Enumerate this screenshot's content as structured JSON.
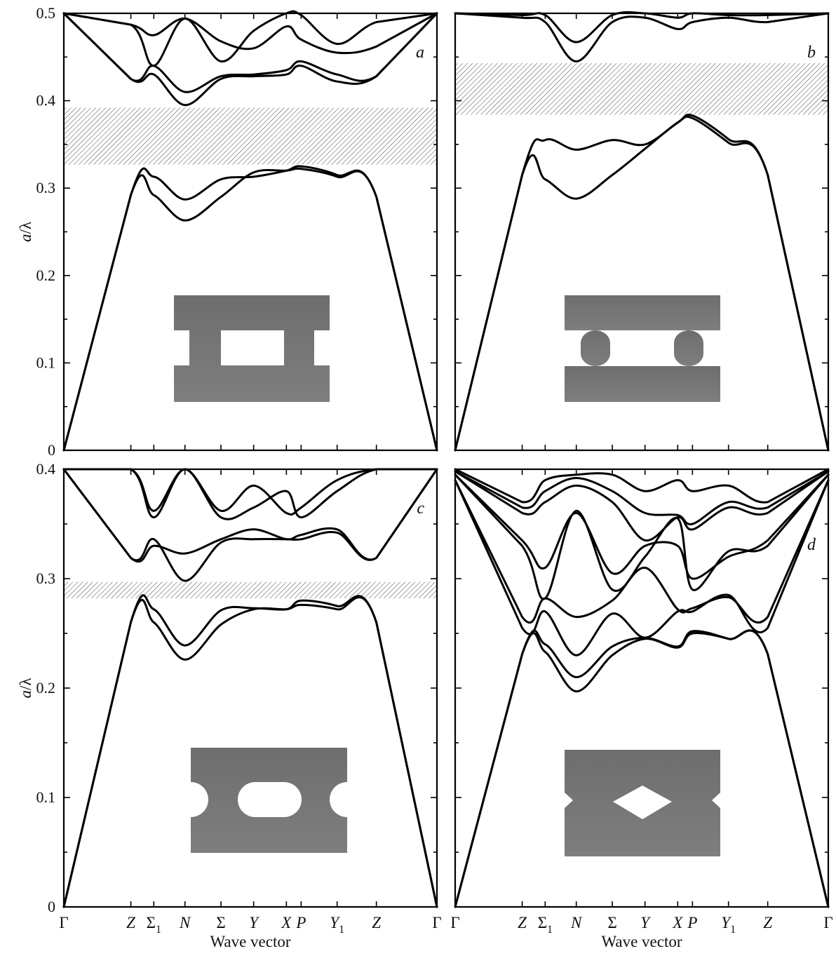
{
  "chart_data": [
    {
      "type": "line",
      "panel": "a",
      "xlabel": "",
      "ylabel": "a/λ",
      "ylim": [
        0,
        0.5
      ],
      "yticks": [
        "0",
        "0.1",
        "0.2",
        "0.3",
        "0.4",
        "0.5"
      ],
      "kpoints": [
        "Γ",
        "Z",
        "Σ1",
        "N",
        "Σ",
        "Y",
        "X",
        "P",
        "Y1",
        "Z",
        "Γ"
      ],
      "band_gap": [
        0.327,
        0.392
      ],
      "series": [
        {
          "y": [
            0,
            0.292,
            0.292,
            0.263,
            0.29,
            0.318,
            0.32,
            0.322,
            0.313,
            0.29,
            0
          ]
        },
        {
          "y": [
            0,
            0.292,
            0.313,
            0.287,
            0.31,
            0.313,
            0.32,
            0.325,
            0.315,
            0.29,
            0
          ]
        },
        {
          "y": [
            0.5,
            0.425,
            0.43,
            0.395,
            0.425,
            0.428,
            0.43,
            0.44,
            0.422,
            0.428,
            0.5
          ]
        },
        {
          "y": [
            0.5,
            0.425,
            0.44,
            0.41,
            0.428,
            0.43,
            0.435,
            0.445,
            0.43,
            0.428,
            0.5
          ]
        },
        {
          "y": [
            0.5,
            0.487,
            0.475,
            0.494,
            0.468,
            0.46,
            0.485,
            0.47,
            0.455,
            0.462,
            0.5
          ]
        },
        {
          "y": [
            0.5,
            0.487,
            0.44,
            0.494,
            0.445,
            0.48,
            0.5,
            0.498,
            0.465,
            0.49,
            0.5
          ]
        }
      ]
    },
    {
      "type": "line",
      "panel": "b",
      "xlabel": "",
      "ylabel": "",
      "ylim": [
        0,
        0.5
      ],
      "yticks": [
        "0",
        "0.1",
        "0.2",
        "0.3",
        "0.4",
        "0.5"
      ],
      "kpoints": [
        "Γ",
        "Z",
        "Σ1",
        "N",
        "Σ",
        "Y",
        "X",
        "P",
        "Y1",
        "Z",
        "Γ"
      ],
      "band_gap": [
        0.384,
        0.443
      ],
      "series": [
        {
          "y": [
            0,
            0.315,
            0.31,
            0.288,
            0.315,
            0.345,
            0.375,
            0.38,
            0.352,
            0.315,
            0
          ]
        },
        {
          "y": [
            0,
            0.315,
            0.355,
            0.344,
            0.355,
            0.35,
            0.375,
            0.383,
            0.356,
            0.315,
            0
          ]
        },
        {
          "y": [
            0.5,
            0.495,
            0.49,
            0.445,
            0.49,
            0.495,
            0.482,
            0.49,
            0.495,
            0.49,
            0.5
          ]
        },
        {
          "y": [
            0.5,
            0.498,
            0.498,
            0.467,
            0.498,
            0.5,
            0.495,
            0.5,
            0.498,
            0.498,
            0.5
          ]
        }
      ]
    },
    {
      "type": "line",
      "panel": "c",
      "xlabel": "Wave vector",
      "ylabel": "a/λ",
      "ylim": [
        0,
        0.4
      ],
      "yticks": [
        "0",
        "0.1",
        "0.2",
        "0.3",
        "0.4"
      ],
      "kpoints": [
        "Γ",
        "Z",
        "Σ1",
        "N",
        "Σ",
        "Y",
        "X",
        "P",
        "Y1",
        "Z",
        "Γ"
      ],
      "band_gap": [
        0.282,
        0.297
      ],
      "series": [
        {
          "y": [
            0,
            0.26,
            0.26,
            0.226,
            0.258,
            0.272,
            0.272,
            0.276,
            0.272,
            0.26,
            0
          ]
        },
        {
          "y": [
            0,
            0.26,
            0.272,
            0.239,
            0.271,
            0.273,
            0.272,
            0.28,
            0.275,
            0.26,
            0
          ]
        },
        {
          "y": [
            0.4,
            0.319,
            0.336,
            0.298,
            0.333,
            0.336,
            0.336,
            0.336,
            0.342,
            0.319,
            0.4
          ]
        },
        {
          "y": [
            0.4,
            0.319,
            0.33,
            0.323,
            0.336,
            0.345,
            0.336,
            0.34,
            0.345,
            0.319,
            0.4
          ]
        },
        {
          "y": [
            0.4,
            0.4,
            0.356,
            0.4,
            0.356,
            0.365,
            0.38,
            0.356,
            0.38,
            0.4,
            0.4
          ]
        },
        {
          "y": [
            0.4,
            0.4,
            0.362,
            0.4,
            0.362,
            0.385,
            0.36,
            0.365,
            0.39,
            0.4,
            0.4
          ]
        }
      ]
    },
    {
      "type": "line",
      "panel": "d",
      "xlabel": "Wave vector",
      "ylabel": "",
      "ylim": [
        0,
        0.4
      ],
      "yticks": [
        "0",
        "0.1",
        "0.2",
        "0.3",
        "0.4"
      ],
      "kpoints": [
        "Γ",
        "Z",
        "Σ1",
        "N",
        "Σ",
        "Y",
        "X",
        "P",
        "Y1",
        "Z",
        "Γ"
      ],
      "band_gap": null,
      "series": [
        {
          "y": [
            0,
            0.231,
            0.233,
            0.197,
            0.23,
            0.245,
            0.237,
            0.25,
            0.245,
            0.231,
            0
          ]
        },
        {
          "y": [
            0,
            0.231,
            0.24,
            0.21,
            0.238,
            0.246,
            0.238,
            0.252,
            0.245,
            0.231,
            0
          ]
        },
        {
          "y": [
            0.39,
            0.255,
            0.27,
            0.23,
            0.268,
            0.246,
            0.27,
            0.27,
            0.285,
            0.255,
            0.39
          ]
        },
        {
          "y": [
            0.39,
            0.265,
            0.282,
            0.265,
            0.28,
            0.31,
            0.272,
            0.273,
            0.283,
            0.265,
            0.39
          ]
        },
        {
          "y": [
            0.395,
            0.33,
            0.282,
            0.362,
            0.29,
            0.32,
            0.355,
            0.29,
            0.325,
            0.33,
            0.395
          ]
        },
        {
          "y": [
            0.395,
            0.335,
            0.31,
            0.36,
            0.305,
            0.33,
            0.33,
            0.3,
            0.32,
            0.335,
            0.395
          ]
        },
        {
          "y": [
            0.398,
            0.36,
            0.37,
            0.385,
            0.37,
            0.335,
            0.356,
            0.345,
            0.365,
            0.36,
            0.398
          ]
        },
        {
          "y": [
            0.398,
            0.365,
            0.38,
            0.392,
            0.38,
            0.36,
            0.358,
            0.35,
            0.37,
            0.365,
            0.398
          ]
        },
        {
          "y": [
            0.4,
            0.37,
            0.39,
            0.395,
            0.395,
            0.38,
            0.39,
            0.38,
            0.385,
            0.37,
            0.4
          ]
        }
      ]
    }
  ],
  "insets": {
    "a": "solid-block-rectangular-hole-icon",
    "b": "two-bars-with-round-pillars-icon",
    "c": "block-with-stadium-hole-icon",
    "d": "block-with-diamond-hole-icon"
  },
  "colors": {
    "band_gap_hatch": "#555555",
    "inset_fill": "#777777",
    "curve": "#000000"
  }
}
